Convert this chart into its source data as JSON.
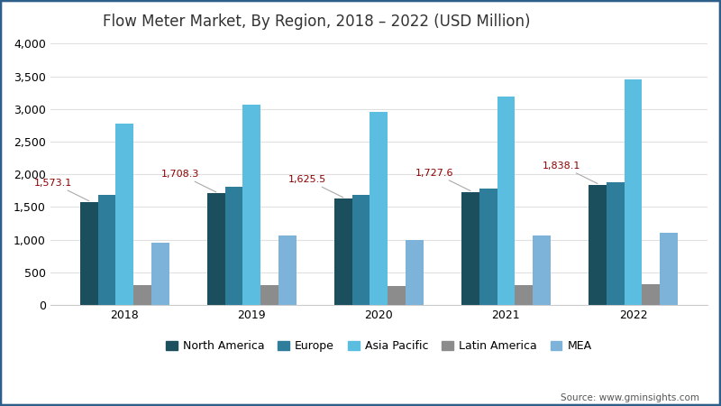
{
  "title": "Flow Meter Market, By Region, 2018 – 2022 (USD Million)",
  "years": [
    2018,
    2019,
    2020,
    2021,
    2022
  ],
  "regions": [
    "North America",
    "Europe",
    "Asia Pacific",
    "Latin America",
    "MEA"
  ],
  "values": {
    "North America": [
      1573.1,
      1708.3,
      1625.5,
      1727.6,
      1838.1
    ],
    "Europe": [
      1680,
      1810,
      1690,
      1780,
      1880
    ],
    "Asia Pacific": [
      2780,
      3060,
      2960,
      3190,
      3460
    ],
    "Latin America": [
      300,
      305,
      295,
      305,
      320
    ],
    "MEA": [
      960,
      1060,
      1000,
      1060,
      1110
    ]
  },
  "colors": {
    "North America": "#1b4f5e",
    "Europe": "#2e7d9a",
    "Asia Pacific": "#5bbde0",
    "Latin America": "#8c8c8c",
    "MEA": "#7db3d8"
  },
  "annotated_values": [
    1573.1,
    1708.3,
    1625.5,
    1727.6,
    1838.1
  ],
  "ylim": [
    0,
    4000
  ],
  "yticks": [
    0,
    500,
    1000,
    1500,
    2000,
    2500,
    3000,
    3500,
    4000
  ],
  "source_text": "Source: www.gminsights.com",
  "fig_bg": "#ffffff",
  "plot_bg": "#ffffff",
  "bar_width": 0.14,
  "title_fontsize": 12,
  "legend_fontsize": 9,
  "tick_fontsize": 9,
  "annotation_fontsize": 8,
  "annotation_color": "#8B0000",
  "grid_color": "#e0e0e0",
  "border_color": "#2e5f8a"
}
